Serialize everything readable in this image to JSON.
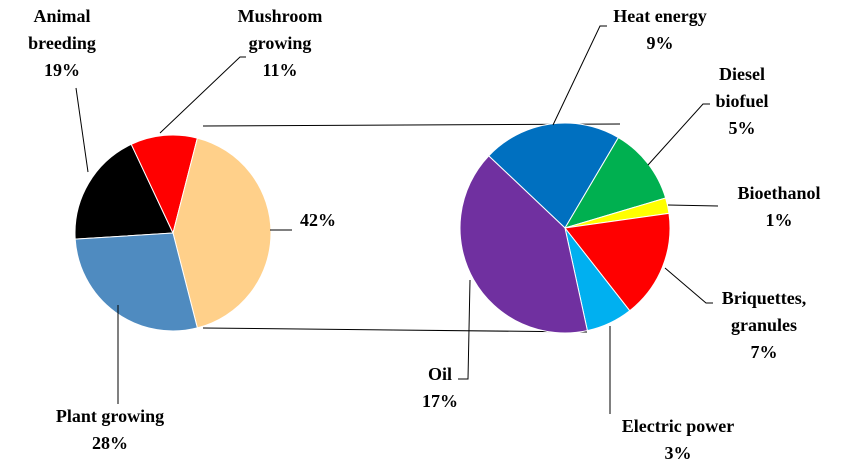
{
  "chart_data": [
    {
      "type": "pie",
      "categories": [
        "Animal\nbreeding",
        "Mushroom\ngrowing",
        null,
        "Plant growing"
      ],
      "values": [
        19,
        11,
        42,
        28
      ],
      "value_labels": [
        "19%",
        "11%",
        "42%",
        "28%"
      ],
      "colors": [
        "#000000",
        "#ff0000",
        "#ffd08a",
        "#4f8bc0"
      ]
    },
    {
      "type": "pie",
      "categories": [
        "Heat energy",
        "Diesel\nbiofuel",
        "Bioethanol",
        "Briquettes,\ngranules",
        "Electric power",
        "Oil"
      ],
      "values": [
        9,
        5,
        1,
        7,
        3,
        17
      ],
      "value_labels": [
        "9%",
        "5%",
        "1%",
        "7%",
        "3%",
        "17%"
      ],
      "colors": [
        "#0070c0",
        "#00b050",
        "#ffff00",
        "#ff0000",
        "#00b0f0",
        "#7030a0"
      ]
    }
  ]
}
